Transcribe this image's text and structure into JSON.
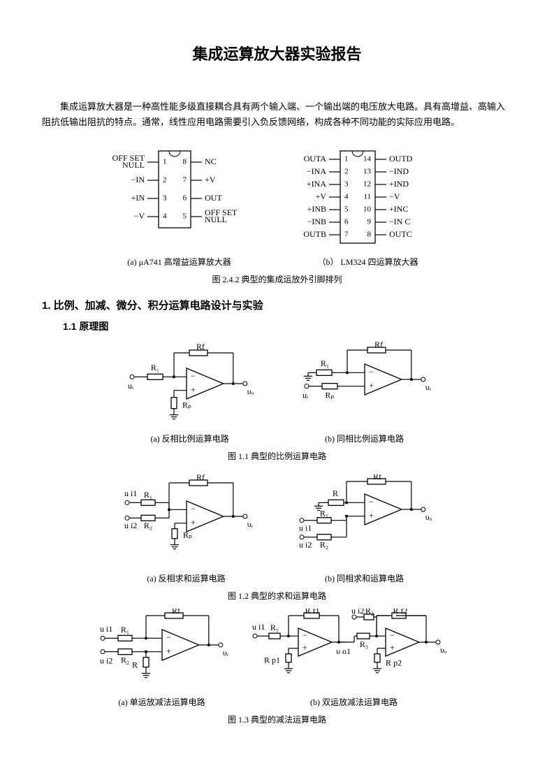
{
  "title": "集成运算放大器实验报告",
  "intro": "集成运算放大器是一种高性能多级直接耦合具有两个输入端、一个输出端的电压放大电路。具有高增益、高输入阻抗低输出阻抗的特点。通常，线性应用电路需要引入负反馈网络，构成各种不同功能的实际应用电路。",
  "chip8": {
    "left": [
      "OFF SET\nNULL",
      "−IN",
      "+IN",
      "−V"
    ],
    "right": [
      "NC",
      "+V",
      "OUT",
      "OFF SET\nNULL"
    ],
    "leftNums": [
      1,
      2,
      3,
      4
    ],
    "rightNums": [
      8,
      7,
      6,
      5
    ],
    "caption": "(a) μA741 高增益运算放大器"
  },
  "chip14": {
    "left": [
      "OUTA",
      "−INA",
      "+INA",
      "+V",
      "+INB",
      "−INB",
      "OUTB"
    ],
    "right": [
      "OUTD",
      "−IND",
      "+IND",
      "−V",
      "+INC",
      "−IN C",
      "OUTC"
    ],
    "leftNums": [
      1,
      2,
      3,
      4,
      5,
      6,
      7
    ],
    "rightNums": [
      14,
      13,
      12,
      11,
      10,
      9,
      8
    ],
    "caption": "（b）  LM324 四运算放大器"
  },
  "fig242": "图 2.4.2    典型的集成运放外引脚排列",
  "sec1": "1.    比例、加减、微分、积分运算电路设计与实验",
  "sec11": "1.1 原理图",
  "row1": {
    "a": "(a)  反相比例运算电路",
    "b": "(b)  同相比例运算电路",
    "cap": "图 1.1  典型的比例运算电路"
  },
  "row2": {
    "a": "(a)  反相求和运算电路",
    "b": "(b)  同相求和运算电路",
    "cap": "图 1.2  典型的求和运算电路"
  },
  "row3": {
    "a": "(a)  单运放减法运算电路",
    "b": "(b)  双运放减法运算电路",
    "cap": "图 1.3  典型的减法运算电路"
  },
  "colors": {
    "stroke": "#000000",
    "bg": "#ffffff"
  }
}
